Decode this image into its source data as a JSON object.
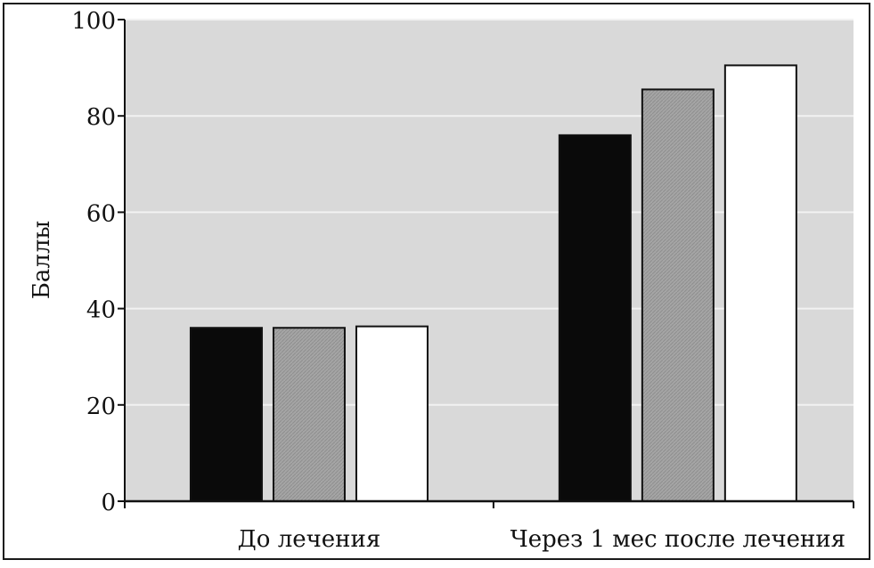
{
  "chart_data": {
    "type": "bar",
    "title": "",
    "xlabel": "",
    "ylabel": "Баллы",
    "ylim": [
      0,
      100
    ],
    "yticks": [
      0,
      20,
      40,
      60,
      80,
      100
    ],
    "grid": true,
    "legend": "none",
    "categories": [
      "До лечения",
      "Через 1 мес после лечения"
    ],
    "series": [
      {
        "values": [
          36,
          76
        ],
        "color": "#0a0a0a"
      },
      {
        "values": [
          36,
          85.5
        ],
        "color": "#a7a7a7"
      },
      {
        "values": [
          36.3,
          90.5
        ],
        "color": "#ffffff"
      }
    ],
    "colors": {
      "plot_background": "#d9d9d9",
      "gridline": "#f2f2f2",
      "frame": "#1a1a1a"
    }
  }
}
